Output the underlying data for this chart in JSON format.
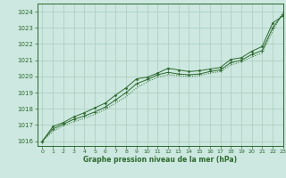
{
  "bg_color": "#cce8e0",
  "grid_color": "#aaccbb",
  "line_color": "#2d6a2d",
  "xlabel": "Graphe pression niveau de la mer (hPa)",
  "xlim": [
    -0.5,
    23
  ],
  "ylim": [
    1015.7,
    1024.5
  ],
  "yticks": [
    1016,
    1017,
    1018,
    1019,
    1020,
    1021,
    1022,
    1023,
    1024
  ],
  "xticks": [
    0,
    1,
    2,
    3,
    4,
    5,
    6,
    7,
    8,
    9,
    10,
    11,
    12,
    13,
    14,
    15,
    16,
    17,
    18,
    19,
    20,
    21,
    22,
    23
  ],
  "line1_x": [
    0,
    1,
    2,
    3,
    4,
    5,
    6,
    7,
    8,
    9,
    10,
    11,
    12,
    13,
    14,
    15,
    16,
    17,
    18,
    19,
    20,
    21,
    22,
    23
  ],
  "line1_y": [
    1016.0,
    1016.9,
    1017.15,
    1017.5,
    1017.75,
    1018.05,
    1018.35,
    1018.85,
    1019.3,
    1019.85,
    1019.95,
    1020.2,
    1020.5,
    1020.4,
    1020.3,
    1020.35,
    1020.45,
    1020.55,
    1021.05,
    1021.15,
    1021.55,
    1021.85,
    1023.3,
    1023.75
  ],
  "line2_x": [
    0,
    1,
    2,
    3,
    4,
    5,
    6,
    7,
    8,
    9,
    10,
    11,
    12,
    13,
    14,
    15,
    16,
    17,
    18,
    19,
    20,
    21,
    22,
    23
  ],
  "line2_y": [
    1016.0,
    1016.75,
    1017.05,
    1017.35,
    1017.55,
    1017.8,
    1018.1,
    1018.55,
    1019.0,
    1019.55,
    1019.8,
    1020.1,
    1020.25,
    1020.15,
    1020.1,
    1020.15,
    1020.3,
    1020.4,
    1020.85,
    1021.0,
    1021.35,
    1021.6,
    1023.0,
    1023.85
  ],
  "line3_x": [
    0,
    1,
    2,
    3,
    4,
    5,
    6,
    7,
    8,
    9,
    10,
    11,
    12,
    13,
    14,
    15,
    16,
    17,
    18,
    19,
    20,
    21,
    22,
    23
  ],
  "line3_y": [
    1016.0,
    1016.6,
    1016.95,
    1017.2,
    1017.4,
    1017.65,
    1017.95,
    1018.35,
    1018.75,
    1019.3,
    1019.65,
    1019.95,
    1020.1,
    1020.05,
    1020.0,
    1020.05,
    1020.2,
    1020.3,
    1020.7,
    1020.9,
    1021.2,
    1021.45,
    1022.8,
    1024.0
  ]
}
